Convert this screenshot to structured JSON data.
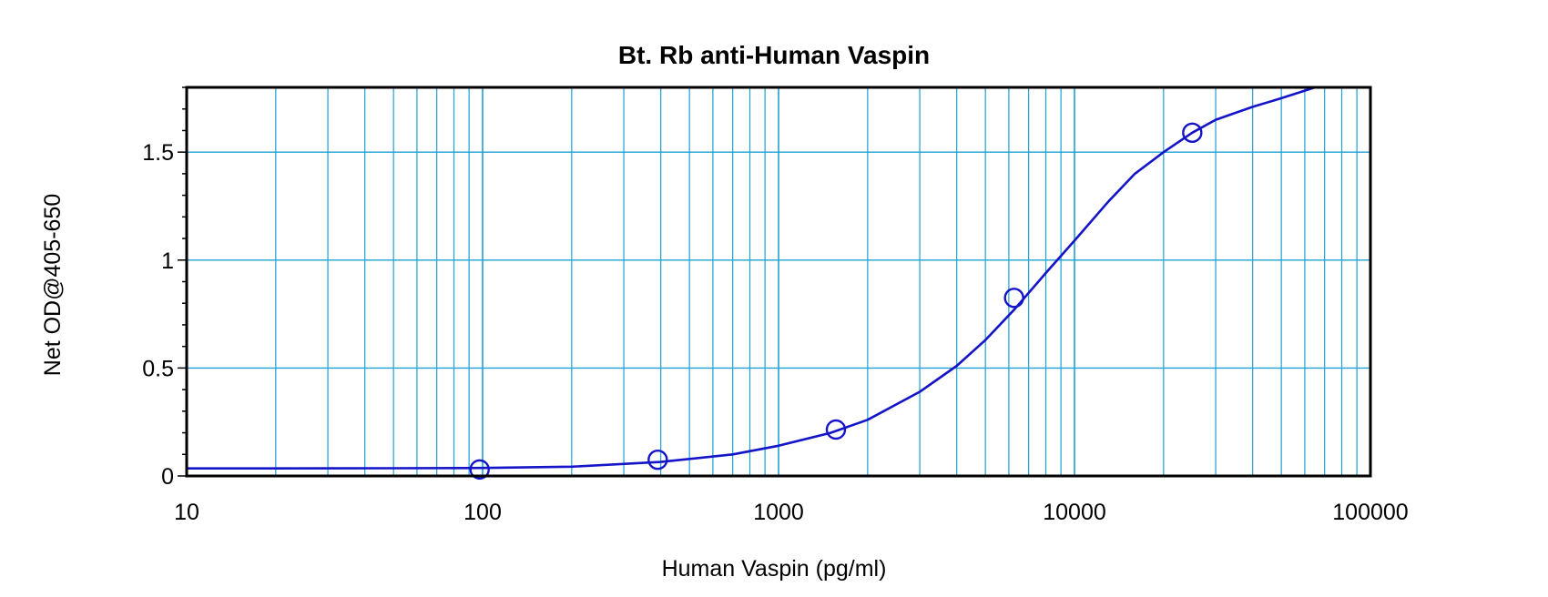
{
  "colors": {
    "background": "#ffffff",
    "grid": "#1ea0d6",
    "curve": "#1414c8",
    "frame": "#000000"
  },
  "chart_data": {
    "type": "scatter",
    "title": "Bt. Rb anti-Human Vaspin",
    "xlabel": "Human Vaspin (pg/ml)",
    "ylabel": "Net OD@405-650",
    "x_scale": "log",
    "xlim": [
      10,
      100000
    ],
    "ylim": [
      0,
      1.8
    ],
    "grid": true,
    "x_ticks": [
      10,
      100,
      1000,
      10000,
      100000
    ],
    "x_tick_labels": [
      "10",
      "100",
      "1000",
      "10000",
      "100000"
    ],
    "y_ticks": [
      0,
      0.5,
      1,
      1.5
    ],
    "y_tick_labels": [
      "0",
      "0.5",
      "1",
      "1.5"
    ],
    "series": [
      {
        "kind": "points",
        "marker": "circle",
        "x": [
          97.7,
          390.6,
          1562.5,
          6250,
          25000
        ],
        "y": [
          0.03,
          0.075,
          0.215,
          0.825,
          1.59
        ]
      },
      {
        "kind": "fit-curve",
        "x": [
          10,
          20,
          50,
          100,
          200,
          400,
          700,
          1000,
          1500,
          2000,
          3000,
          4000,
          5000,
          6250,
          8000,
          10000,
          13000,
          16000,
          20000,
          25000,
          30000,
          40000,
          50000,
          65000
        ],
        "y": [
          0.035,
          0.035,
          0.036,
          0.037,
          0.043,
          0.065,
          0.1,
          0.14,
          0.2,
          0.26,
          0.39,
          0.51,
          0.63,
          0.77,
          0.94,
          1.09,
          1.27,
          1.4,
          1.5,
          1.59,
          1.65,
          1.71,
          1.75,
          1.8
        ]
      }
    ]
  }
}
